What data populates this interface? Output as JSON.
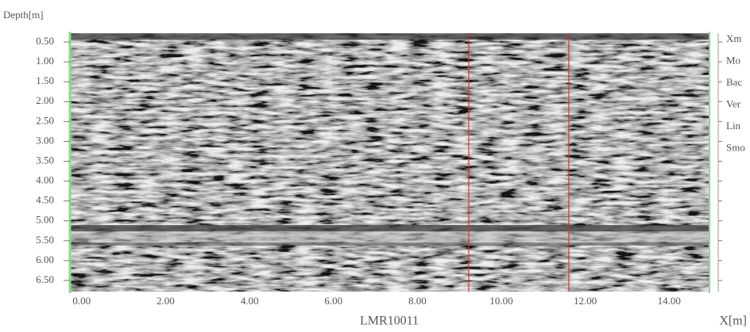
{
  "y_label": "Depth[m]",
  "x_label": "X[m]",
  "file_name": "LMR10011",
  "ylim": [
    0.28,
    6.78
  ],
  "xlim": [
    -0.28,
    14.96
  ],
  "yticks": [
    {
      "value": 0.5,
      "label": "0.50"
    },
    {
      "value": 1.0,
      "label": "1.00"
    },
    {
      "value": 1.5,
      "label": "1.50"
    },
    {
      "value": 2.0,
      "label": "2.00"
    },
    {
      "value": 2.5,
      "label": "2.50"
    },
    {
      "value": 3.0,
      "label": "3.00"
    },
    {
      "value": 3.5,
      "label": "3.50"
    },
    {
      "value": 4.0,
      "label": "4.00"
    },
    {
      "value": 4.5,
      "label": "4.50"
    },
    {
      "value": 5.0,
      "label": "5.00"
    },
    {
      "value": 5.5,
      "label": "5.50"
    },
    {
      "value": 6.0,
      "label": "6.00"
    },
    {
      "value": 6.5,
      "label": "6.50"
    }
  ],
  "xticks": [
    {
      "value": 0,
      "label": "0.00"
    },
    {
      "value": 2,
      "label": "2.00"
    },
    {
      "value": 4,
      "label": "4.00"
    },
    {
      "value": 6,
      "label": "6.00"
    },
    {
      "value": 8,
      "label": "8.00"
    },
    {
      "value": 10,
      "label": "10.00"
    },
    {
      "value": 12,
      "label": "12.00"
    },
    {
      "value": 14,
      "label": "14.00"
    }
  ],
  "side_menu": [
    "Xm",
    "Mo",
    "Bac",
    "Ver",
    "Lin",
    "Smo"
  ]
}
